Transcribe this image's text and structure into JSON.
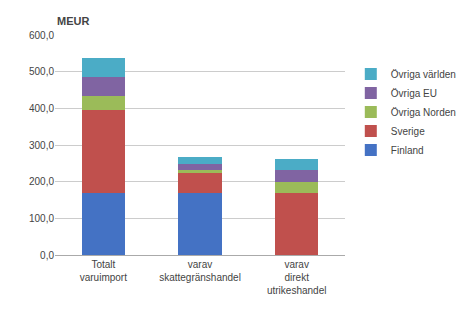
{
  "chart_data": {
    "type": "bar",
    "stacked": true,
    "ylabel": "MEUR",
    "categories": [
      "Totalt varuimport",
      "varav skattegränshandel",
      "varav direkt utrikeshandel"
    ],
    "series": [
      {
        "name": "Finland",
        "color": "#4472C4",
        "values": [
          170,
          168,
          0
        ]
      },
      {
        "name": "Sverige",
        "color": "#C0504D",
        "values": [
          225,
          57,
          168
        ]
      },
      {
        "name": "Övriga Norden",
        "color": "#9BBB59",
        "values": [
          38,
          8,
          32
        ]
      },
      {
        "name": "Övriga EU",
        "color": "#8064A2",
        "values": [
          52,
          15,
          32
        ]
      },
      {
        "name": "Övriga världen",
        "color": "#4BACC6",
        "values": [
          52,
          20,
          30
        ]
      }
    ],
    "ylim": [
      0,
      600
    ],
    "yticks": [
      {
        "value": 0,
        "label": "0,0"
      },
      {
        "value": 100,
        "label": "100,0"
      },
      {
        "value": 200,
        "label": "200,0"
      },
      {
        "value": 300,
        "label": "300,0"
      },
      {
        "value": 400,
        "label": "400,0"
      },
      {
        "value": 500,
        "label": "500,0"
      },
      {
        "value": 600,
        "label": "600,0"
      }
    ],
    "grid": true,
    "legend": "right"
  }
}
